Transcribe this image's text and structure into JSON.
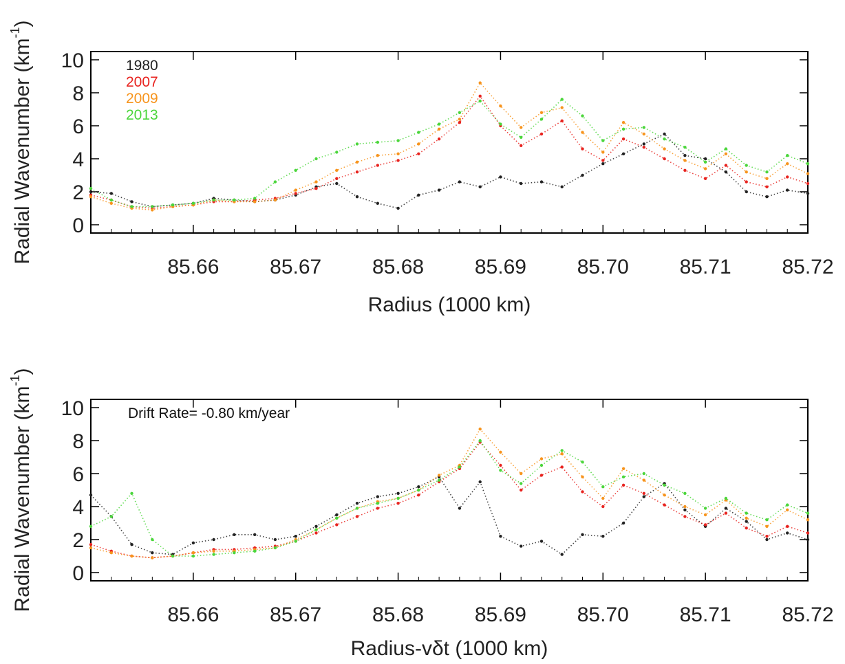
{
  "chart_data": [
    {
      "type": "scatter",
      "xlabel": "Radius (1000 km)",
      "ylabel_main": "Radial Wavenumber (km",
      "ylabel_sup": "-1",
      "ylabel_close": ")",
      "xlim": [
        85.65,
        85.72
      ],
      "ylim": [
        -0.5,
        10.5
      ],
      "x_ticks": [
        85.66,
        85.67,
        85.68,
        85.69,
        85.7,
        85.71,
        85.72
      ],
      "x_tick_labels": [
        "85.66",
        "85.67",
        "85.68",
        "85.69",
        "85.70",
        "85.71",
        "85.72"
      ],
      "y_ticks": [
        0,
        2,
        4,
        6,
        8,
        10
      ],
      "y_tick_labels": [
        "0",
        "2",
        "4",
        "6",
        "8",
        "10"
      ],
      "legend_position": "top-left",
      "annotation": "",
      "grid": false,
      "series": [
        {
          "name": "1980",
          "color": "#222222",
          "x": [
            85.65,
            85.652,
            85.654,
            85.656,
            85.658,
            85.66,
            85.662,
            85.664,
            85.666,
            85.668,
            85.67,
            85.672,
            85.674,
            85.676,
            85.678,
            85.68,
            85.682,
            85.684,
            85.686,
            85.688,
            85.69,
            85.692,
            85.694,
            85.696,
            85.698,
            85.7,
            85.702,
            85.704,
            85.706,
            85.708,
            85.71,
            85.712,
            85.714,
            85.716,
            85.718,
            85.72
          ],
          "y": [
            2.0,
            1.9,
            1.4,
            1.1,
            1.2,
            1.3,
            1.6,
            1.5,
            1.4,
            1.5,
            1.8,
            2.3,
            2.5,
            1.7,
            1.3,
            1.0,
            1.8,
            2.1,
            2.6,
            2.3,
            2.9,
            2.5,
            2.6,
            2.3,
            3.0,
            3.7,
            4.3,
            4.9,
            5.5,
            4.2,
            4.0,
            3.2,
            2.0,
            1.7,
            2.1,
            1.9
          ]
        },
        {
          "name": "2007",
          "color": "#e8231f",
          "x": [
            85.65,
            85.652,
            85.654,
            85.656,
            85.658,
            85.66,
            85.662,
            85.664,
            85.666,
            85.668,
            85.67,
            85.672,
            85.674,
            85.676,
            85.678,
            85.68,
            85.682,
            85.684,
            85.686,
            85.688,
            85.69,
            85.692,
            85.694,
            85.696,
            85.698,
            85.7,
            85.702,
            85.704,
            85.706,
            85.708,
            85.71,
            85.712,
            85.714,
            85.716,
            85.718,
            85.72
          ],
          "y": [
            1.8,
            1.5,
            1.1,
            1.0,
            1.1,
            1.2,
            1.4,
            1.4,
            1.5,
            1.6,
            1.9,
            2.2,
            2.8,
            3.2,
            3.6,
            3.9,
            4.3,
            5.2,
            6.2,
            7.8,
            6.0,
            4.8,
            5.5,
            6.3,
            4.6,
            3.9,
            5.2,
            4.7,
            4.0,
            3.3,
            2.8,
            3.6,
            2.6,
            2.3,
            2.9,
            2.5
          ]
        },
        {
          "name": "2009",
          "color": "#f7941d",
          "x": [
            85.65,
            85.652,
            85.654,
            85.656,
            85.658,
            85.66,
            85.662,
            85.664,
            85.666,
            85.668,
            85.67,
            85.672,
            85.674,
            85.676,
            85.678,
            85.68,
            85.682,
            85.684,
            85.686,
            85.688,
            85.69,
            85.692,
            85.694,
            85.696,
            85.698,
            85.7,
            85.702,
            85.704,
            85.706,
            85.708,
            85.71,
            85.712,
            85.714,
            85.716,
            85.718,
            85.72
          ],
          "y": [
            1.7,
            1.3,
            1.0,
            0.9,
            1.1,
            1.2,
            1.5,
            1.4,
            1.4,
            1.5,
            2.1,
            2.6,
            3.3,
            3.8,
            4.2,
            4.3,
            4.9,
            5.8,
            6.4,
            8.6,
            7.2,
            5.9,
            6.8,
            7.1,
            5.6,
            4.4,
            6.2,
            5.5,
            4.6,
            3.9,
            3.4,
            4.3,
            3.2,
            2.8,
            3.7,
            3.1
          ]
        },
        {
          "name": "2013",
          "color": "#4bd63b",
          "x": [
            85.65,
            85.652,
            85.654,
            85.656,
            85.658,
            85.66,
            85.662,
            85.664,
            85.666,
            85.668,
            85.67,
            85.672,
            85.674,
            85.676,
            85.678,
            85.68,
            85.682,
            85.684,
            85.686,
            85.688,
            85.69,
            85.692,
            85.694,
            85.696,
            85.698,
            85.7,
            85.702,
            85.704,
            85.706,
            85.708,
            85.71,
            85.712,
            85.714,
            85.716,
            85.718,
            85.72
          ],
          "y": [
            2.2,
            1.5,
            1.1,
            1.1,
            1.2,
            1.3,
            1.5,
            1.5,
            1.6,
            2.6,
            3.3,
            4.0,
            4.4,
            4.9,
            5.0,
            5.1,
            5.6,
            6.1,
            6.8,
            7.5,
            6.1,
            5.3,
            6.4,
            7.6,
            6.6,
            5.1,
            5.8,
            5.9,
            5.2,
            4.7,
            3.8,
            4.6,
            3.6,
            3.2,
            4.2,
            3.7
          ]
        }
      ]
    },
    {
      "type": "scatter",
      "xlabel": "Radius-vδt (1000 km)",
      "ylabel_main": "Radial Wavenumber (km",
      "ylabel_sup": "-1",
      "ylabel_close": ")",
      "xlim": [
        85.65,
        85.72
      ],
      "ylim": [
        -0.5,
        10.5
      ],
      "x_ticks": [
        85.66,
        85.67,
        85.68,
        85.69,
        85.7,
        85.71,
        85.72
      ],
      "x_tick_labels": [
        "85.66",
        "85.67",
        "85.68",
        "85.69",
        "85.70",
        "85.71",
        "85.72"
      ],
      "y_ticks": [
        0,
        2,
        4,
        6,
        8,
        10
      ],
      "y_tick_labels": [
        "0",
        "2",
        "4",
        "6",
        "8",
        "10"
      ],
      "legend_position": "",
      "annotation": "Drift Rate= -0.80 km/year",
      "grid": false,
      "series": [
        {
          "name": "1980",
          "color": "#222222",
          "x": [
            85.65,
            85.652,
            85.654,
            85.656,
            85.658,
            85.66,
            85.662,
            85.664,
            85.666,
            85.668,
            85.67,
            85.672,
            85.674,
            85.676,
            85.678,
            85.68,
            85.682,
            85.684,
            85.686,
            85.688,
            85.69,
            85.692,
            85.694,
            85.696,
            85.698,
            85.7,
            85.702,
            85.704,
            85.706,
            85.708,
            85.71,
            85.712,
            85.714,
            85.716,
            85.718,
            85.72
          ],
          "y": [
            4.7,
            3.4,
            1.7,
            1.2,
            1.1,
            1.8,
            2.0,
            2.3,
            2.3,
            2.0,
            2.2,
            2.8,
            3.5,
            4.2,
            4.6,
            4.8,
            5.2,
            5.8,
            3.9,
            5.5,
            2.2,
            1.6,
            1.9,
            1.1,
            2.3,
            2.2,
            3.0,
            4.6,
            5.4,
            3.8,
            2.8,
            3.9,
            3.1,
            2.0,
            2.4,
            2.0
          ]
        },
        {
          "name": "2007",
          "color": "#e8231f",
          "x": [
            85.65,
            85.652,
            85.654,
            85.656,
            85.658,
            85.66,
            85.662,
            85.664,
            85.666,
            85.668,
            85.67,
            85.672,
            85.674,
            85.676,
            85.678,
            85.68,
            85.682,
            85.684,
            85.686,
            85.688,
            85.69,
            85.692,
            85.694,
            85.696,
            85.698,
            85.7,
            85.702,
            85.704,
            85.706,
            85.708,
            85.71,
            85.712,
            85.714,
            85.716,
            85.718,
            85.72
          ],
          "y": [
            1.7,
            1.3,
            1.0,
            0.9,
            1.0,
            1.2,
            1.4,
            1.4,
            1.5,
            1.6,
            1.9,
            2.4,
            2.9,
            3.4,
            3.9,
            4.2,
            4.7,
            5.5,
            6.3,
            7.9,
            6.5,
            5.0,
            5.9,
            6.4,
            4.9,
            4.0,
            5.3,
            4.8,
            4.1,
            3.4,
            2.9,
            3.6,
            2.7,
            2.2,
            2.8,
            2.4
          ]
        },
        {
          "name": "2009",
          "color": "#f7941d",
          "x": [
            85.65,
            85.652,
            85.654,
            85.656,
            85.658,
            85.66,
            85.662,
            85.664,
            85.666,
            85.668,
            85.67,
            85.672,
            85.674,
            85.676,
            85.678,
            85.68,
            85.682,
            85.684,
            85.686,
            85.688,
            85.69,
            85.692,
            85.694,
            85.696,
            85.698,
            85.7,
            85.702,
            85.704,
            85.706,
            85.708,
            85.71,
            85.712,
            85.714,
            85.716,
            85.718,
            85.72
          ],
          "y": [
            1.5,
            1.2,
            1.0,
            0.9,
            1.0,
            1.2,
            1.3,
            1.3,
            1.4,
            1.5,
            2.0,
            2.6,
            3.3,
            3.9,
            4.3,
            4.5,
            5.0,
            5.9,
            6.5,
            8.7,
            7.3,
            6.0,
            6.9,
            7.2,
            5.8,
            4.5,
            6.3,
            5.6,
            4.7,
            4.0,
            3.5,
            4.4,
            3.3,
            2.8,
            3.8,
            3.2
          ]
        },
        {
          "name": "2013",
          "color": "#4bd63b",
          "x": [
            85.65,
            85.652,
            85.654,
            85.656,
            85.658,
            85.66,
            85.662,
            85.664,
            85.666,
            85.668,
            85.67,
            85.672,
            85.674,
            85.676,
            85.678,
            85.68,
            85.682,
            85.684,
            85.686,
            85.688,
            85.69,
            85.692,
            85.694,
            85.696,
            85.698,
            85.7,
            85.702,
            85.704,
            85.706,
            85.708,
            85.71,
            85.712,
            85.714,
            85.716,
            85.718,
            85.72
          ],
          "y": [
            2.8,
            3.4,
            4.8,
            2.0,
            1.0,
            1.0,
            1.1,
            1.2,
            1.3,
            1.5,
            1.9,
            2.6,
            3.3,
            3.9,
            4.2,
            4.5,
            5.0,
            5.6,
            6.4,
            8.0,
            6.2,
            5.4,
            6.5,
            7.4,
            6.7,
            5.2,
            5.8,
            6.0,
            5.3,
            4.8,
            3.9,
            4.5,
            3.6,
            3.2,
            4.1,
            3.6
          ]
        }
      ]
    }
  ]
}
